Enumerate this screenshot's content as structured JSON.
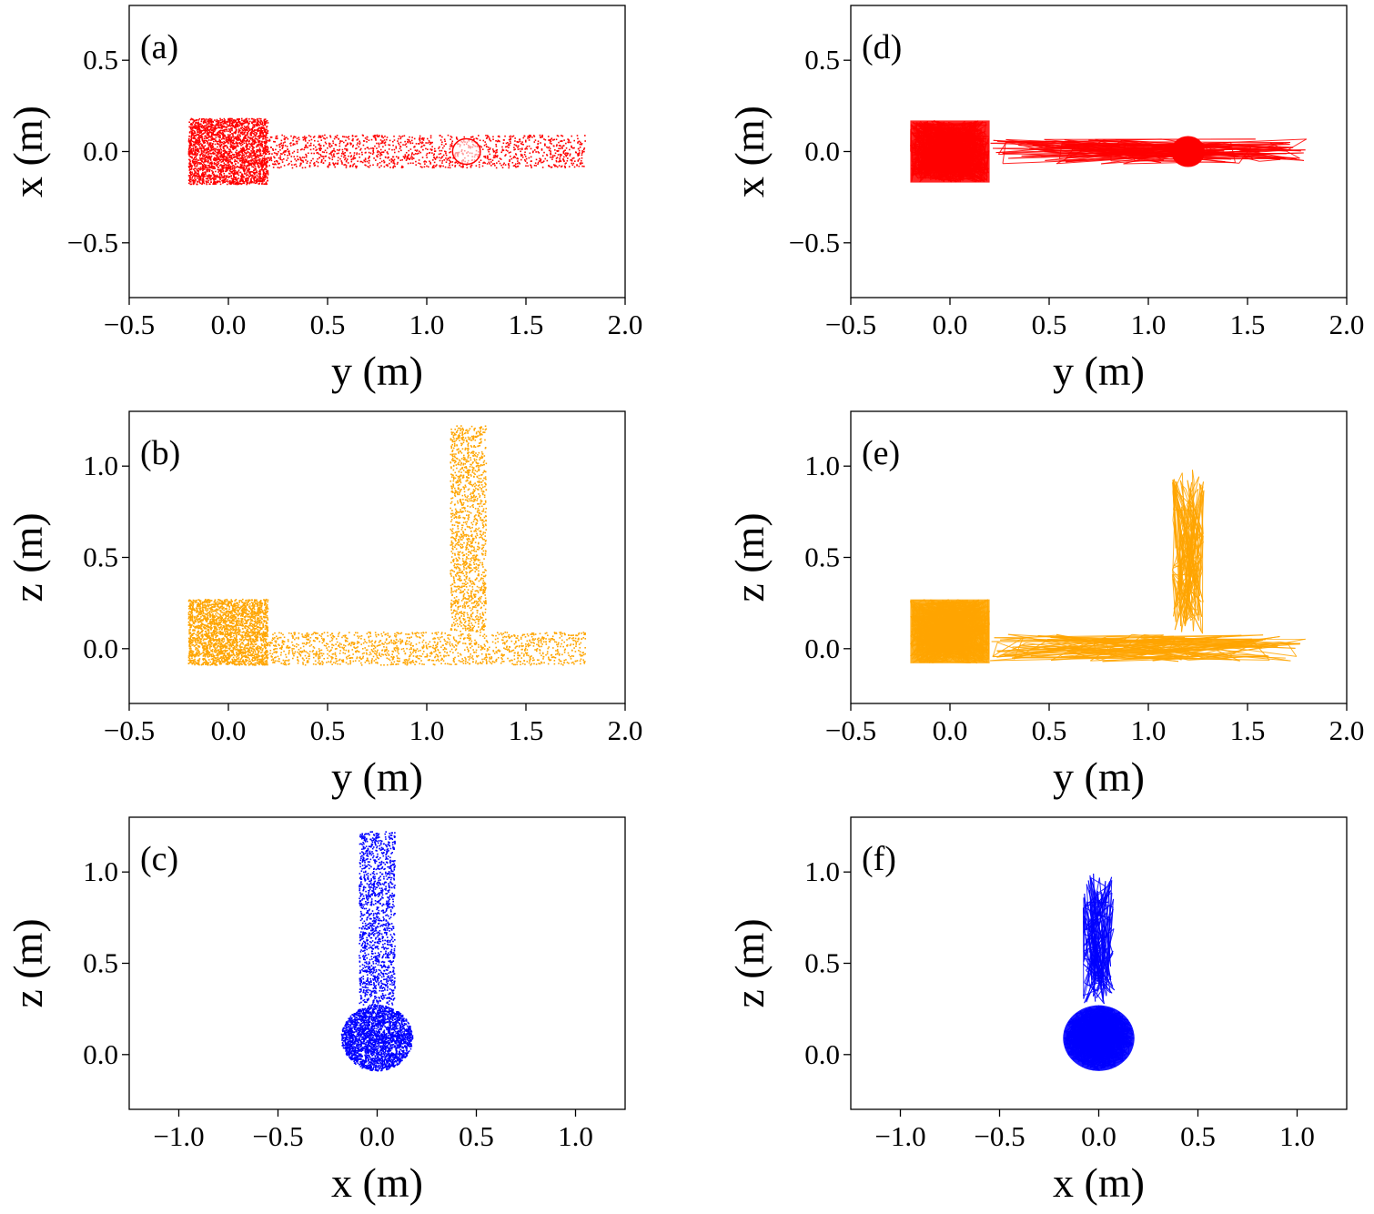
{
  "figure": {
    "description_panels": [
      "a",
      "b",
      "c",
      "d",
      "e",
      "f"
    ]
  },
  "colors": {
    "red": "#ff0000",
    "orange": "#ffa500",
    "blue": "#0000ff"
  },
  "chart_data": [
    {
      "id": "a",
      "type": "scatter",
      "panel_label": "(a)",
      "xlabel": "y (m)",
      "ylabel": "x (m)",
      "xlim": [
        -0.5,
        2.0
      ],
      "ylim": [
        -0.8,
        0.8
      ],
      "xticks": [
        -0.5,
        0.0,
        0.5,
        1.0,
        1.5,
        2.0
      ],
      "xtick_labels": [
        "−0.5",
        "0.0",
        "0.5",
        "1.0",
        "1.5",
        "2.0"
      ],
      "yticks": [
        0.5,
        0.0,
        -0.5
      ],
      "ytick_labels": [
        "0.5",
        "0.0",
        "−0.5"
      ],
      "color": "#ff0000",
      "style": "points",
      "regions": [
        {
          "shape": "rect",
          "x": [
            -0.2,
            0.2
          ],
          "y": [
            -0.18,
            0.18
          ],
          "density": "high"
        },
        {
          "shape": "rect",
          "x": [
            0.2,
            1.8
          ],
          "y": [
            -0.09,
            0.09
          ],
          "density": "low"
        }
      ],
      "ring": {
        "cx": 1.2,
        "cy": 0.0,
        "r": 0.07
      }
    },
    {
      "id": "b",
      "type": "scatter",
      "panel_label": "(b)",
      "xlabel": "y (m)",
      "ylabel": "z (m)",
      "xlim": [
        -0.5,
        2.0
      ],
      "ylim": [
        -0.3,
        1.3
      ],
      "xticks": [
        -0.5,
        0.0,
        0.5,
        1.0,
        1.5,
        2.0
      ],
      "xtick_labels": [
        "−0.5",
        "0.0",
        "0.5",
        "1.0",
        "1.5",
        "2.0"
      ],
      "yticks": [
        1.0,
        0.5,
        0.0
      ],
      "ytick_labels": [
        "1.0",
        "0.5",
        "0.0"
      ],
      "color": "#ffa500",
      "style": "points",
      "regions": [
        {
          "shape": "rect",
          "x": [
            -0.2,
            0.2
          ],
          "y": [
            -0.09,
            0.27
          ],
          "density": "high"
        },
        {
          "shape": "rect",
          "x": [
            0.2,
            1.8
          ],
          "y": [
            -0.09,
            0.09
          ],
          "density": "low"
        },
        {
          "shape": "rect",
          "x": [
            1.12,
            1.3
          ],
          "y": [
            0.09,
            1.22
          ],
          "density": "low"
        }
      ]
    },
    {
      "id": "c",
      "type": "scatter",
      "panel_label": "(c)",
      "xlabel": "x (m)",
      "ylabel": "z (m)",
      "xlim": [
        -1.25,
        1.25
      ],
      "ylim": [
        -0.3,
        1.3
      ],
      "xticks": [
        -1.0,
        -0.5,
        0.0,
        0.5,
        1.0
      ],
      "xtick_labels": [
        "−1.0",
        "−0.5",
        "0.0",
        "0.5",
        "1.0"
      ],
      "yticks": [
        1.0,
        0.5,
        0.0
      ],
      "ytick_labels": [
        "1.0",
        "0.5",
        "0.0"
      ],
      "color": "#0000ff",
      "style": "points",
      "regions": [
        {
          "shape": "ellipse",
          "cx": 0.0,
          "cy": 0.09,
          "rx": 0.18,
          "ry": 0.18,
          "density": "high"
        },
        {
          "shape": "rect",
          "x": [
            -0.09,
            0.09
          ],
          "y": [
            0.27,
            1.22
          ],
          "density": "low"
        }
      ]
    },
    {
      "id": "d",
      "type": "line",
      "panel_label": "(d)",
      "xlabel": "y (m)",
      "ylabel": "x (m)",
      "xlim": [
        -0.5,
        2.0
      ],
      "ylim": [
        -0.8,
        0.8
      ],
      "xticks": [
        -0.5,
        0.0,
        0.5,
        1.0,
        1.5,
        2.0
      ],
      "xtick_labels": [
        "−0.5",
        "0.0",
        "0.5",
        "1.0",
        "1.5",
        "2.0"
      ],
      "yticks": [
        0.5,
        0.0,
        -0.5
      ],
      "ytick_labels": [
        "0.5",
        "0.0",
        "−0.5"
      ],
      "color": "#ff0000",
      "style": "trajectories",
      "regions": [
        {
          "shape": "rect",
          "x": [
            -0.2,
            0.2
          ],
          "y": [
            -0.17,
            0.17
          ],
          "density": "high"
        },
        {
          "shape": "rect",
          "x": [
            0.2,
            1.8
          ],
          "y": [
            -0.07,
            0.07
          ],
          "density": "low"
        }
      ],
      "disk": {
        "cx": 1.2,
        "cy": 0.0,
        "r": 0.085
      }
    },
    {
      "id": "e",
      "type": "line",
      "panel_label": "(e)",
      "xlabel": "y (m)",
      "ylabel": "z (m)",
      "xlim": [
        -0.5,
        2.0
      ],
      "ylim": [
        -0.3,
        1.3
      ],
      "xticks": [
        -0.5,
        0.0,
        0.5,
        1.0,
        1.5,
        2.0
      ],
      "xtick_labels": [
        "−0.5",
        "0.0",
        "0.5",
        "1.0",
        "1.5",
        "2.0"
      ],
      "yticks": [
        1.0,
        0.5,
        0.0
      ],
      "ytick_labels": [
        "1.0",
        "0.5",
        "0.0"
      ],
      "color": "#ffa500",
      "style": "trajectories",
      "regions": [
        {
          "shape": "rect",
          "x": [
            -0.2,
            0.2
          ],
          "y": [
            -0.08,
            0.27
          ],
          "density": "high"
        },
        {
          "shape": "rect",
          "x": [
            0.2,
            1.8
          ],
          "y": [
            -0.07,
            0.08
          ],
          "density": "low"
        },
        {
          "shape": "rect",
          "x": [
            1.12,
            1.28
          ],
          "y": [
            0.08,
            1.0
          ],
          "density": "low"
        }
      ]
    },
    {
      "id": "f",
      "type": "line",
      "panel_label": "(f)",
      "xlabel": "x (m)",
      "ylabel": "z (m)",
      "xlim": [
        -1.25,
        1.25
      ],
      "ylim": [
        -0.3,
        1.3
      ],
      "xticks": [
        -1.0,
        -0.5,
        0.0,
        0.5,
        1.0
      ],
      "xtick_labels": [
        "−1.0",
        "−0.5",
        "0.0",
        "0.5",
        "1.0"
      ],
      "yticks": [
        1.0,
        0.5,
        0.0
      ],
      "ytick_labels": [
        "1.0",
        "0.5",
        "0.0"
      ],
      "color": "#0000ff",
      "style": "trajectories",
      "regions": [
        {
          "shape": "ellipse",
          "cx": 0.0,
          "cy": 0.09,
          "rx": 0.18,
          "ry": 0.18,
          "density": "high"
        },
        {
          "shape": "rect",
          "x": [
            -0.08,
            0.08
          ],
          "y": [
            0.27,
            1.0
          ],
          "density": "low"
        }
      ]
    }
  ]
}
